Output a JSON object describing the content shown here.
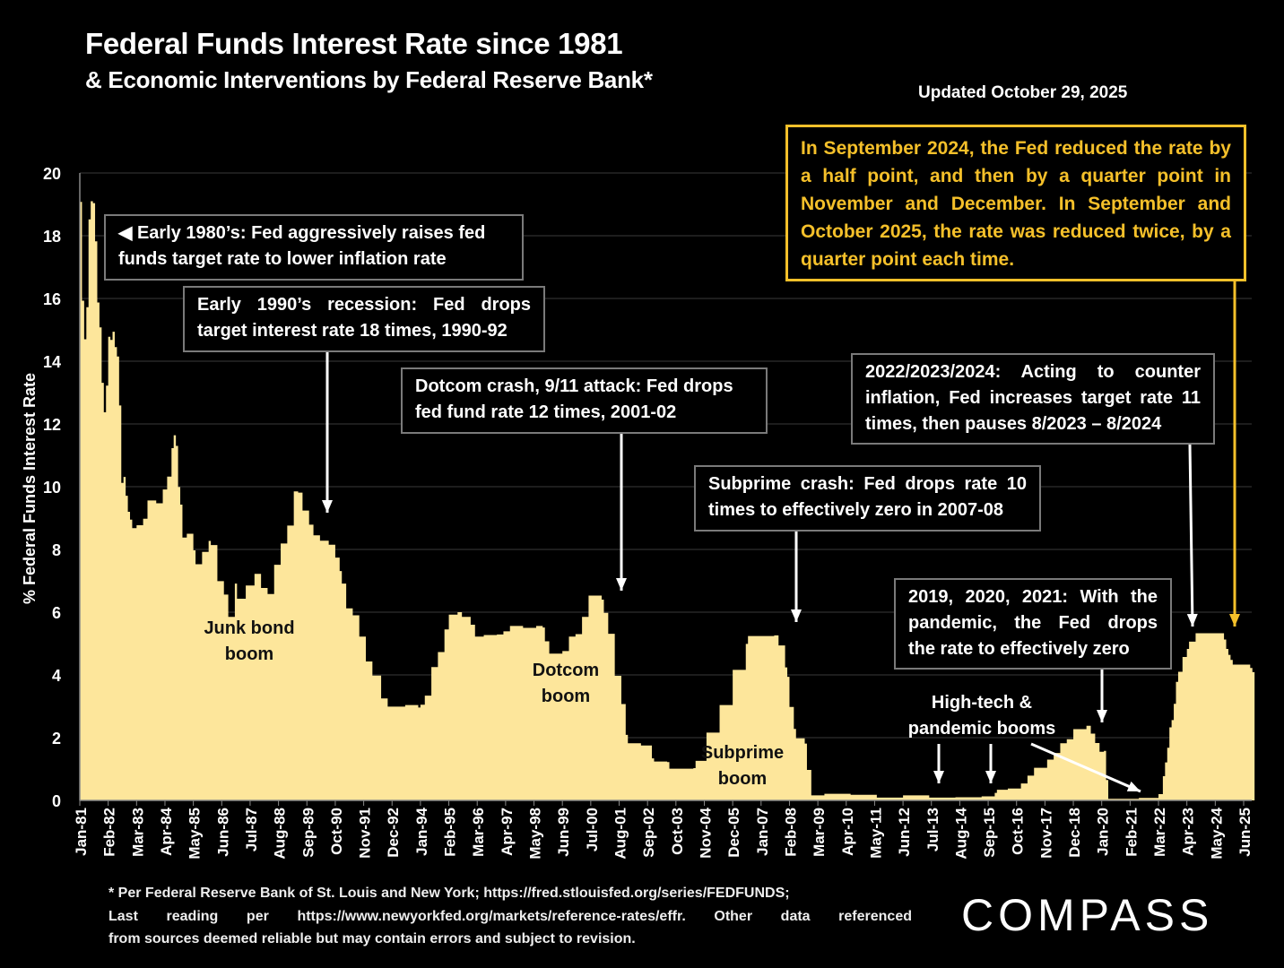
{
  "title": "Federal Funds Interest Rate since 1981",
  "subtitle": "& Economic Interventions by Federal Reserve Bank*",
  "updated": "Updated October 29, 2025",
  "colors": {
    "area": "#fde69b",
    "highlight": "#f5c02a",
    "box_border": "#7a7a7a",
    "background": "#000000"
  },
  "annotations": {
    "early80s": [
      "◀ Early 1980’s: Fed aggressively raises fed",
      "funds target rate to lower inflation rate"
    ],
    "early90s": [
      "Early 1990’s recession: Fed drops",
      "target interest rate 18 times, 1990-92"
    ],
    "dotcom": [
      "Dotcom crash, 9/11 attack: Fed drops",
      "fed fund rate 12 times, 2001-02"
    ],
    "subprime": [
      "Subprime crash: Fed drops rate 10",
      "times to effectively zero in 2007-08"
    ],
    "y2022": [
      "2022/2023/2024: Acting to counter",
      "inflation, Fed increases target rate 11",
      "times, then pauses 8/2023 – 8/2024"
    ],
    "pandemic": [
      "2019, 2020, 2021: With the",
      "pandemic, the Fed drops",
      "the rate to effectively zero"
    ],
    "highlight": "In September 2024, the Fed reduced the rate by a half point, and then by a quarter point in November and December. In September and October 2025, the rate was reduced twice, by a quarter point each time.",
    "junk_bond": [
      "Junk bond",
      "boom"
    ],
    "dotcom_boom": [
      "Dotcom",
      "boom"
    ],
    "subprime_boom": [
      "Subprime",
      "boom"
    ],
    "hitech": [
      "High-tech &",
      "pandemic booms"
    ]
  },
  "footnote": [
    "* Per Federal Reserve Bank of St. Louis and New York; https://fred.stlouisfed.org/series/FEDFUNDS;",
    "Last reading per https://www.newyorkfed.org/markets/reference-rates/effr. Other data referenced",
    "from sources deemed reliable but may contain errors and subject to revision."
  ],
  "logo": "COMPASS",
  "chart_data": {
    "type": "area",
    "title": "Federal Funds Interest Rate since 1981",
    "xlabel": "",
    "ylabel": "% Federal Funds Interest Rate",
    "ylim": [
      0,
      20
    ],
    "yticks": [
      0,
      2,
      4,
      6,
      8,
      10,
      12,
      14,
      16,
      18,
      20
    ],
    "grid": true,
    "xticks": [
      "Jan-81",
      "Feb-82",
      "Mar-83",
      "Apr-84",
      "May-85",
      "Jun-86",
      "Jul-87",
      "Aug-88",
      "Sep-89",
      "Oct-90",
      "Nov-91",
      "Dec-92",
      "Jan-94",
      "Feb-95",
      "Mar-96",
      "Apr-97",
      "May-98",
      "Jun-99",
      "Jul-00",
      "Aug-01",
      "Sep-02",
      "Oct-03",
      "Nov-04",
      "Dec-05",
      "Jan-07",
      "Feb-08",
      "Mar-09",
      "Apr-10",
      "May-11",
      "Jun-12",
      "Jul-13",
      "Aug-14",
      "Sep-15",
      "Oct-16",
      "Nov-17",
      "Dec-18",
      "Jan-20",
      "Feb-21",
      "Mar-22",
      "Apr-23",
      "May-24",
      "Jun-25"
    ],
    "series": [
      {
        "points": [
          [
            "1981-01",
            19.08
          ],
          [
            "1981-02",
            15.93
          ],
          [
            "1981-03",
            14.7
          ],
          [
            "1981-04",
            15.72
          ],
          [
            "1981-05",
            18.52
          ],
          [
            "1981-06",
            19.1
          ],
          [
            "1981-07",
            19.04
          ],
          [
            "1981-08",
            17.82
          ],
          [
            "1981-09",
            15.87
          ],
          [
            "1981-10",
            15.08
          ],
          [
            "1981-11",
            13.31
          ],
          [
            "1981-12",
            12.37
          ],
          [
            "1982-01",
            13.22
          ],
          [
            "1982-02",
            14.78
          ],
          [
            "1982-03",
            14.68
          ],
          [
            "1982-04",
            14.94
          ],
          [
            "1982-05",
            14.45
          ],
          [
            "1982-06",
            14.15
          ],
          [
            "1982-07",
            12.59
          ],
          [
            "1982-08",
            10.12
          ],
          [
            "1982-09",
            10.31
          ],
          [
            "1982-10",
            9.71
          ],
          [
            "1982-11",
            9.2
          ],
          [
            "1982-12",
            8.95
          ],
          [
            "1983-01",
            8.68
          ],
          [
            "1983-03",
            8.77
          ],
          [
            "1983-06",
            8.98
          ],
          [
            "1983-08",
            9.56
          ],
          [
            "1983-12",
            9.47
          ],
          [
            "1984-03",
            9.91
          ],
          [
            "1984-05",
            10.32
          ],
          [
            "1984-07",
            11.23
          ],
          [
            "1984-08",
            11.64
          ],
          [
            "1984-09",
            11.3
          ],
          [
            "1984-10",
            9.99
          ],
          [
            "1984-11",
            9.43
          ],
          [
            "1984-12",
            8.38
          ],
          [
            "1985-02",
            8.5
          ],
          [
            "1985-05",
            7.97
          ],
          [
            "1985-06",
            7.53
          ],
          [
            "1985-09",
            7.92
          ],
          [
            "1985-12",
            8.27
          ],
          [
            "1986-01",
            8.14
          ],
          [
            "1986-04",
            6.99
          ],
          [
            "1986-07",
            6.56
          ],
          [
            "1986-09",
            5.85
          ],
          [
            "1986-12",
            6.91
          ],
          [
            "1987-01",
            6.43
          ],
          [
            "1987-05",
            6.85
          ],
          [
            "1987-09",
            7.22
          ],
          [
            "1987-12",
            6.77
          ],
          [
            "1988-03",
            6.58
          ],
          [
            "1988-06",
            7.51
          ],
          [
            "1988-09",
            8.19
          ],
          [
            "1988-12",
            8.76
          ],
          [
            "1989-03",
            9.85
          ],
          [
            "1989-05",
            9.81
          ],
          [
            "1989-07",
            9.24
          ],
          [
            "1989-10",
            8.79
          ],
          [
            "1989-12",
            8.45
          ],
          [
            "1990-03",
            8.28
          ],
          [
            "1990-07",
            8.15
          ],
          [
            "1990-10",
            7.74
          ],
          [
            "1990-12",
            7.31
          ],
          [
            "1991-01",
            6.91
          ],
          [
            "1991-03",
            6.12
          ],
          [
            "1991-06",
            5.9
          ],
          [
            "1991-09",
            5.22
          ],
          [
            "1991-12",
            4.43
          ],
          [
            "1992-03",
            3.98
          ],
          [
            "1992-07",
            3.25
          ],
          [
            "1992-10",
            2.99
          ],
          [
            "1993-06",
            3.04
          ],
          [
            "1993-12",
            2.96
          ],
          [
            "1994-01",
            3.05
          ],
          [
            "1994-03",
            3.34
          ],
          [
            "1994-06",
            4.25
          ],
          [
            "1994-09",
            4.73
          ],
          [
            "1994-12",
            5.45
          ],
          [
            "1995-02",
            5.92
          ],
          [
            "1995-06",
            6.0
          ],
          [
            "1995-08",
            5.85
          ],
          [
            "1995-12",
            5.6
          ],
          [
            "1996-02",
            5.22
          ],
          [
            "1996-06",
            5.27
          ],
          [
            "1996-12",
            5.29
          ],
          [
            "1997-03",
            5.39
          ],
          [
            "1997-06",
            5.56
          ],
          [
            "1997-12",
            5.5
          ],
          [
            "1998-06",
            5.56
          ],
          [
            "1998-09",
            5.51
          ],
          [
            "1998-10",
            5.07
          ],
          [
            "1998-12",
            4.68
          ],
          [
            "1999-06",
            4.76
          ],
          [
            "1999-09",
            5.22
          ],
          [
            "1999-12",
            5.3
          ],
          [
            "2000-03",
            5.85
          ],
          [
            "2000-06",
            6.53
          ],
          [
            "2000-12",
            6.4
          ],
          [
            "2001-01",
            5.98
          ],
          [
            "2001-03",
            5.31
          ],
          [
            "2001-06",
            3.97
          ],
          [
            "2001-09",
            3.07
          ],
          [
            "2001-11",
            2.09
          ],
          [
            "2001-12",
            1.82
          ],
          [
            "2002-06",
            1.75
          ],
          [
            "2002-11",
            1.34
          ],
          [
            "2002-12",
            1.24
          ],
          [
            "2003-06",
            1.22
          ],
          [
            "2003-07",
            1.01
          ],
          [
            "2004-06",
            1.03
          ],
          [
            "2004-07",
            1.26
          ],
          [
            "2004-12",
            2.16
          ],
          [
            "2005-06",
            3.04
          ],
          [
            "2005-12",
            4.16
          ],
          [
            "2006-06",
            4.99
          ],
          [
            "2006-07",
            5.24
          ],
          [
            "2007-07",
            5.26
          ],
          [
            "2007-09",
            4.94
          ],
          [
            "2007-12",
            4.24
          ],
          [
            "2008-01",
            3.94
          ],
          [
            "2008-02",
            2.98
          ],
          [
            "2008-04",
            2.28
          ],
          [
            "2008-05",
            1.98
          ],
          [
            "2008-09",
            1.81
          ],
          [
            "2008-10",
            0.97
          ],
          [
            "2008-12",
            0.16
          ],
          [
            "2009-06",
            0.21
          ],
          [
            "2010-06",
            0.18
          ],
          [
            "2011-06",
            0.09
          ],
          [
            "2012-06",
            0.16
          ],
          [
            "2013-06",
            0.09
          ],
          [
            "2014-06",
            0.1
          ],
          [
            "2015-06",
            0.13
          ],
          [
            "2015-12",
            0.24
          ],
          [
            "2016-01",
            0.34
          ],
          [
            "2016-06",
            0.38
          ],
          [
            "2016-12",
            0.54
          ],
          [
            "2017-03",
            0.79
          ],
          [
            "2017-06",
            1.04
          ],
          [
            "2017-12",
            1.3
          ],
          [
            "2018-03",
            1.51
          ],
          [
            "2018-06",
            1.82
          ],
          [
            "2018-09",
            1.95
          ],
          [
            "2018-12",
            2.27
          ],
          [
            "2019-06",
            2.38
          ],
          [
            "2019-08",
            2.13
          ],
          [
            "2019-10",
            1.83
          ],
          [
            "2019-12",
            1.55
          ],
          [
            "2020-02",
            1.58
          ],
          [
            "2020-03",
            0.65
          ],
          [
            "2020-04",
            0.05
          ],
          [
            "2021-06",
            0.08
          ],
          [
            "2022-02",
            0.08
          ],
          [
            "2022-03",
            0.2
          ],
          [
            "2022-05",
            0.77
          ],
          [
            "2022-06",
            1.21
          ],
          [
            "2022-07",
            1.68
          ],
          [
            "2022-08",
            2.33
          ],
          [
            "2022-09",
            2.56
          ],
          [
            "2022-10",
            3.08
          ],
          [
            "2022-11",
            3.78
          ],
          [
            "2022-12",
            4.1
          ],
          [
            "2023-02",
            4.57
          ],
          [
            "2023-04",
            4.83
          ],
          [
            "2023-05",
            5.06
          ],
          [
            "2023-08",
            5.33
          ],
          [
            "2024-08",
            5.33
          ],
          [
            "2024-09",
            5.13
          ],
          [
            "2024-10",
            4.83
          ],
          [
            "2024-11",
            4.64
          ],
          [
            "2024-12",
            4.48
          ],
          [
            "2025-01",
            4.33
          ],
          [
            "2025-08",
            4.33
          ],
          [
            "2025-09",
            4.22
          ],
          [
            "2025-10",
            4.09
          ]
        ]
      }
    ]
  }
}
